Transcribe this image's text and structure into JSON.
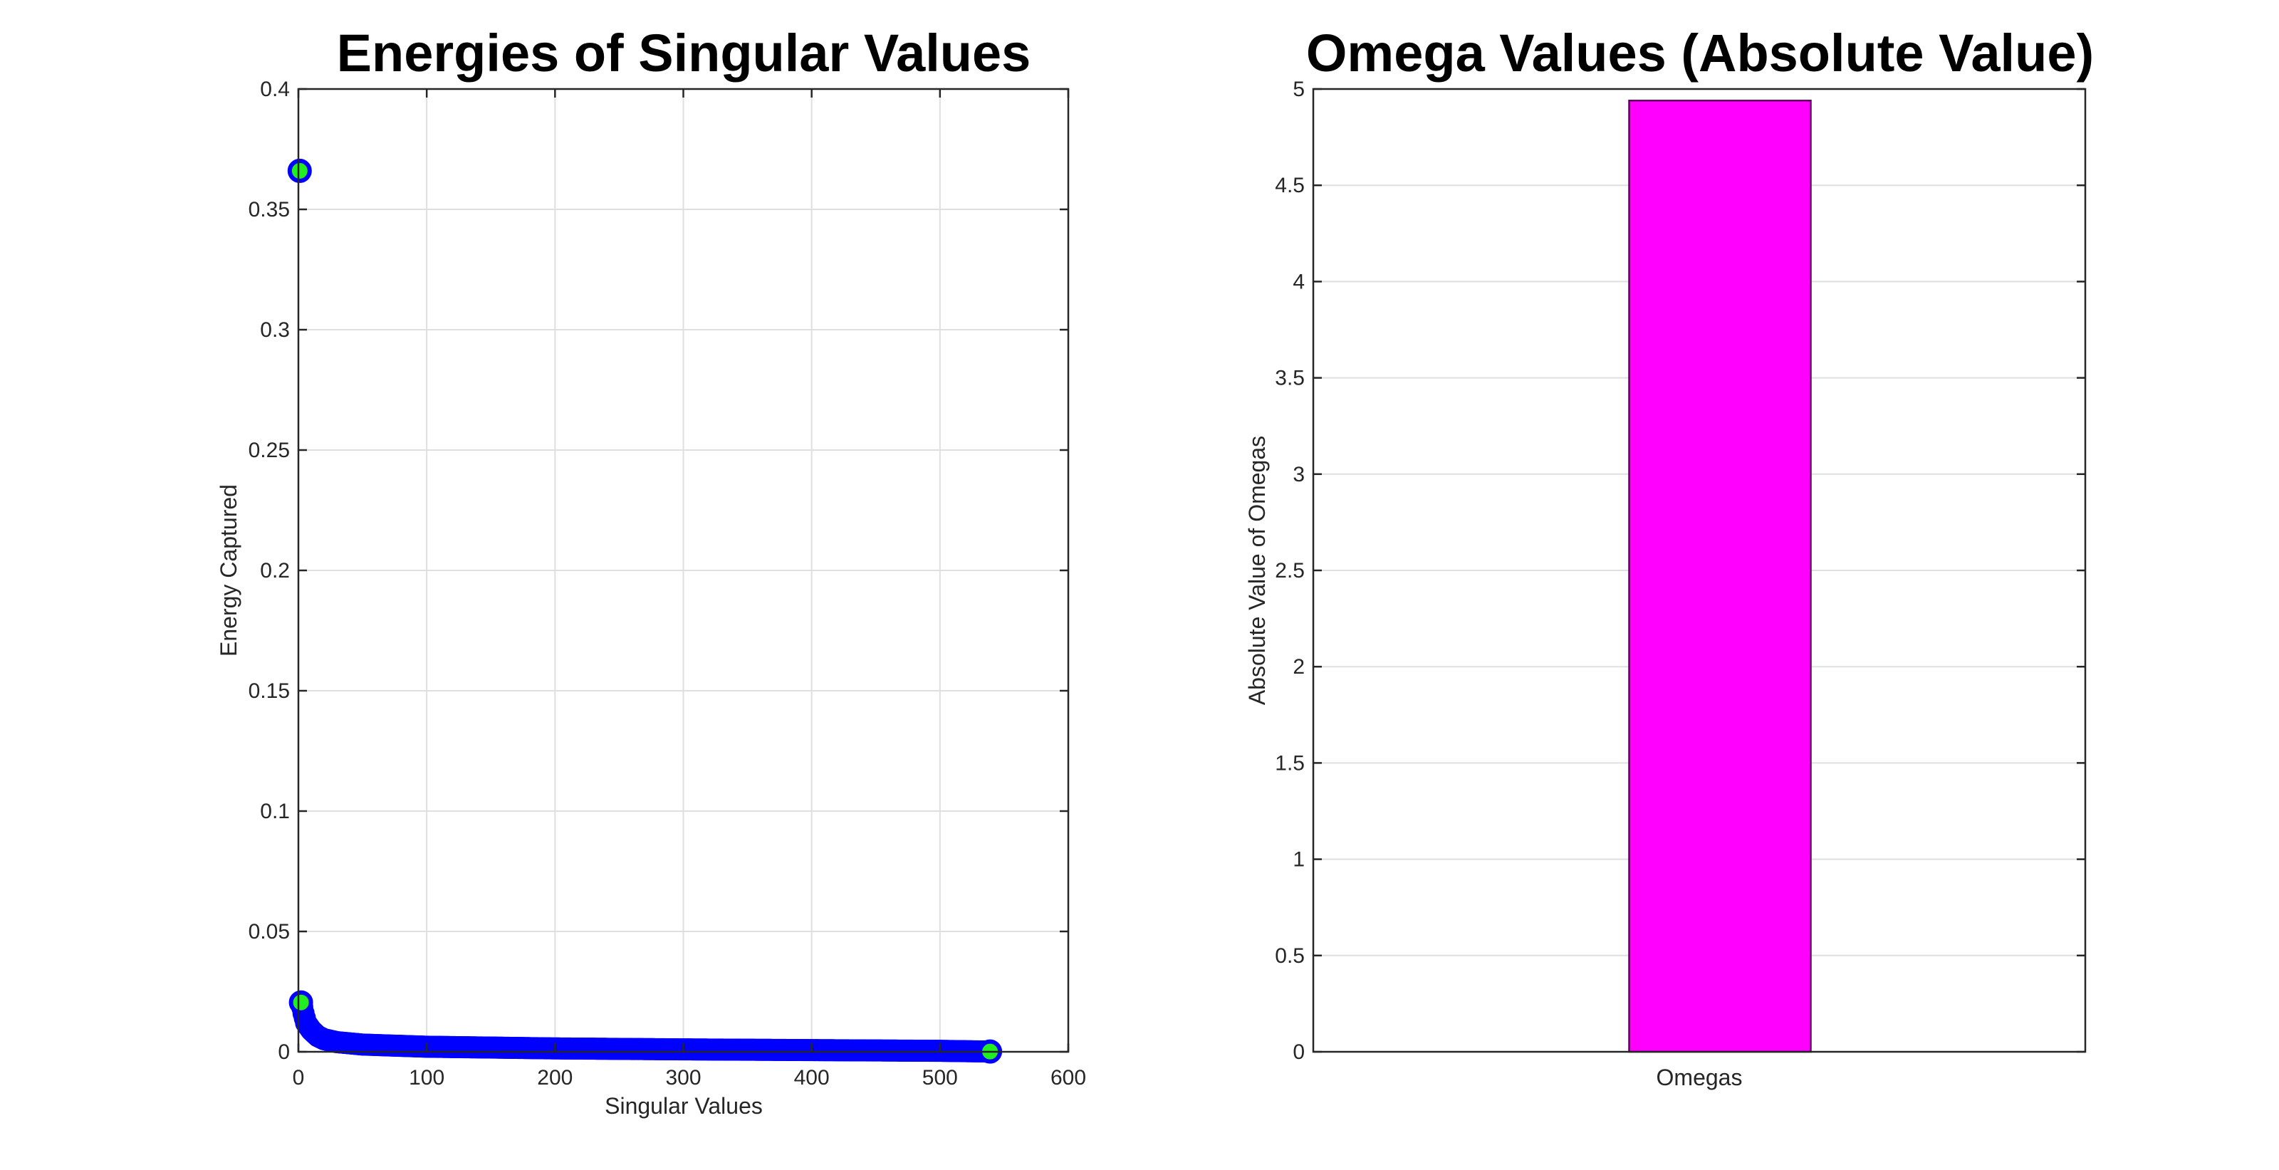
{
  "chart_data": [
    {
      "type": "scatter",
      "title": "Energies of Singular Values",
      "xlabel": "Singular Values",
      "ylabel": "Energy Captured",
      "xlim": [
        0,
        600
      ],
      "ylim": [
        0,
        0.4
      ],
      "xticks": [
        0,
        100,
        200,
        300,
        400,
        500,
        600
      ],
      "yticks": [
        0,
        0.05,
        0.1,
        0.15,
        0.2,
        0.25,
        0.3,
        0.35,
        0.4
      ],
      "xtick_labels": [
        "0",
        "100",
        "200",
        "300",
        "400",
        "500",
        "600"
      ],
      "ytick_labels": [
        "0",
        "0.05",
        "0.1",
        "0.15",
        "0.2",
        "0.25",
        "0.3",
        "0.35",
        "0.4"
      ],
      "grid": true,
      "marker_edge_color": "#0000ff",
      "marker_face_color": "#0000ff",
      "highlight_face_color": "#22ee22",
      "n_points": 539,
      "points": [
        {
          "x": 1,
          "y": 0.366
        },
        {
          "x": 2,
          "y": 0.0205
        },
        {
          "x": 3,
          "y": 0.0185
        },
        {
          "x": 4,
          "y": 0.016
        },
        {
          "x": 5,
          "y": 0.014
        },
        {
          "x": 6,
          "y": 0.012
        },
        {
          "x": 8,
          "y": 0.0105
        },
        {
          "x": 10,
          "y": 0.009
        },
        {
          "x": 15,
          "y": 0.0065
        },
        {
          "x": 20,
          "y": 0.0052
        },
        {
          "x": 30,
          "y": 0.004
        },
        {
          "x": 50,
          "y": 0.003
        },
        {
          "x": 100,
          "y": 0.0021
        },
        {
          "x": 200,
          "y": 0.0014
        },
        {
          "x": 300,
          "y": 0.001
        },
        {
          "x": 400,
          "y": 0.0007
        },
        {
          "x": 500,
          "y": 0.0004
        },
        {
          "x": 539,
          "y": 0.0001
        }
      ],
      "highlighted_points": [
        {
          "x": 1,
          "y": 0.366
        },
        {
          "x": 2,
          "y": 0.0205
        },
        {
          "x": 539,
          "y": 0.0001
        }
      ]
    },
    {
      "type": "bar",
      "title": "Omega Values (Absolute Value)",
      "xlabel": "Omegas",
      "ylabel": "Absolute Value of Omegas",
      "categories": [
        ""
      ],
      "values": [
        4.94
      ],
      "xlim": [
        0,
        1
      ],
      "ylim": [
        0,
        5
      ],
      "yticks": [
        0,
        0.5,
        1,
        1.5,
        2,
        2.5,
        3,
        3.5,
        4,
        4.5,
        5
      ],
      "ytick_labels": [
        "0",
        "0.5",
        "1",
        "1.5",
        "2",
        "2.5",
        "3",
        "3.5",
        "4",
        "4.5",
        "5"
      ],
      "grid": true,
      "bar_color": "#ff00ff",
      "bar_edge_color": "#5a005a"
    }
  ]
}
